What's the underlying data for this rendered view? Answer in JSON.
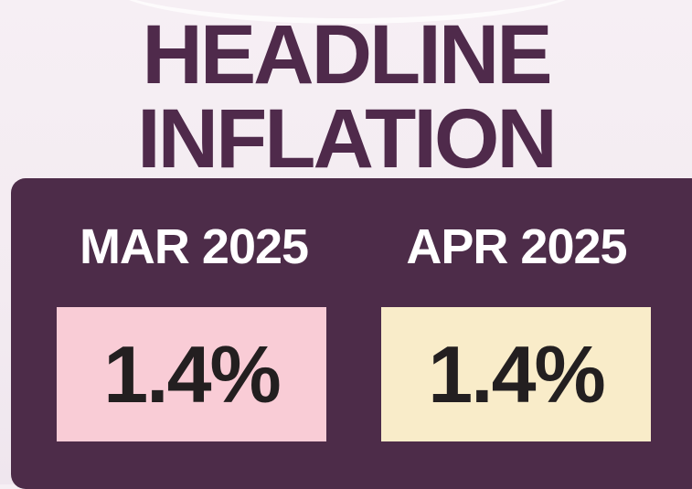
{
  "header": {
    "title_lines": [
      "HEADLINE",
      "INFLATION"
    ]
  },
  "panels": [
    {
      "label": "MAR 2025",
      "value": "1.4%"
    },
    {
      "label": "APR 2025",
      "value": "1.4%"
    }
  ]
}
